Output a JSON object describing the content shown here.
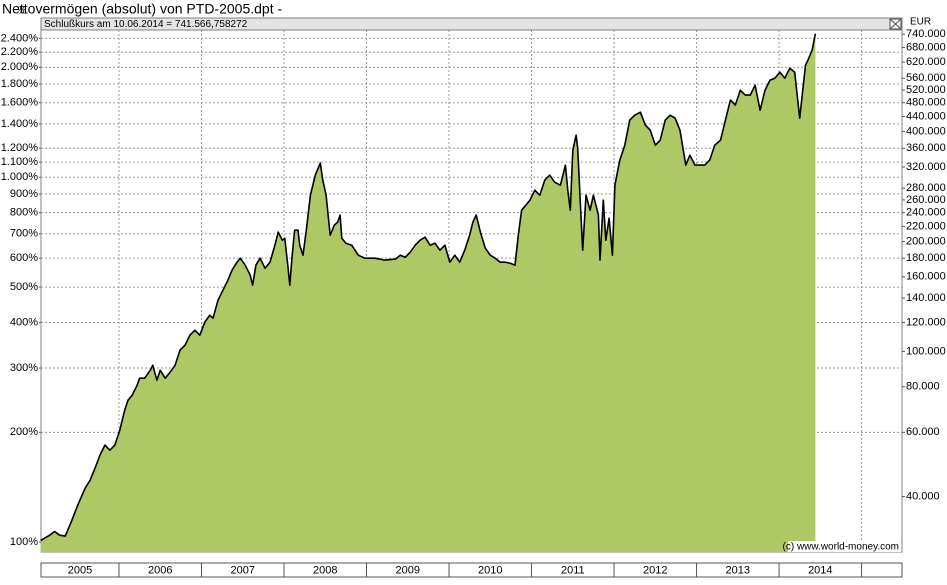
{
  "chart_data": {
    "type": "area",
    "title": "Nettovermögen (absolut) von PTD-2005.dpt -",
    "subtitle": "Schlußkurs am 10.06.2014 = 741.566,758272",
    "y_axis_label": "%",
    "y2_axis_label": "EUR",
    "annotation": "(c) www.world-money.com",
    "log_scale": true,
    "grid": true,
    "fill_color": "#aec866",
    "line_color": "#000000",
    "xlim": [
      2005.055,
      2015.49
    ],
    "xticks": [
      2005,
      2006,
      2007,
      2008,
      2009,
      2010,
      2011,
      2012,
      2013,
      2014
    ],
    "ylim": [
      94,
      2730
    ],
    "yticks": [
      {
        "value": 100,
        "label": "100%"
      },
      {
        "value": 200,
        "label": "200%"
      },
      {
        "value": 300,
        "label": "300%"
      },
      {
        "value": 400,
        "label": "400%"
      },
      {
        "value": 500,
        "label": "500%"
      },
      {
        "value": 600,
        "label": "600%"
      },
      {
        "value": 700,
        "label": "700%"
      },
      {
        "value": 800,
        "label": "800%"
      },
      {
        "value": 900,
        "label": "900%"
      },
      {
        "value": 1000,
        "label": "1.000%"
      },
      {
        "value": 1100,
        "label": "1.100%"
      },
      {
        "value": 1200,
        "label": "1.200%"
      },
      {
        "value": 1400,
        "label": "1.400%"
      },
      {
        "value": 1600,
        "label": "1.600%"
      },
      {
        "value": 1800,
        "label": "1.800%"
      },
      {
        "value": 2000,
        "label": "2.000%"
      },
      {
        "value": 2200,
        "label": "2.200%"
      },
      {
        "value": 2400,
        "label": "2.400%"
      }
    ],
    "y2lim": [
      28200,
      819000
    ],
    "y2ticks": [
      {
        "value": 40000,
        "label": "40.000"
      },
      {
        "value": 60000,
        "label": "60.000"
      },
      {
        "value": 80000,
        "label": "80.000"
      },
      {
        "value": 100000,
        "label": "100.000"
      },
      {
        "value": 120000,
        "label": "120.000"
      },
      {
        "value": 140000,
        "label": "140.000"
      },
      {
        "value": 160000,
        "label": "160.000"
      },
      {
        "value": 180000,
        "label": "180.000"
      },
      {
        "value": 200000,
        "label": "200.000"
      },
      {
        "value": 220000,
        "label": "220.000"
      },
      {
        "value": 240000,
        "label": "240.000"
      },
      {
        "value": 260000,
        "label": "260.000"
      },
      {
        "value": 280000,
        "label": "280.000"
      },
      {
        "value": 320000,
        "label": "320.000"
      },
      {
        "value": 360000,
        "label": "360.000"
      },
      {
        "value": 400000,
        "label": "400.000"
      },
      {
        "value": 440000,
        "label": "440.000"
      },
      {
        "value": 480000,
        "label": "480.000"
      },
      {
        "value": 520000,
        "label": "520.000"
      },
      {
        "value": 560000,
        "label": "560.000"
      },
      {
        "value": 620000,
        "label": "620.000"
      },
      {
        "value": 680000,
        "label": "680.000"
      },
      {
        "value": 740000,
        "label": "740.000"
      }
    ],
    "x": [
      2005.05,
      2005.1,
      2005.16,
      2005.22,
      2005.28,
      2005.35,
      2005.38,
      2005.43,
      2005.5,
      2005.59,
      2005.65,
      2005.71,
      2005.77,
      2005.83,
      2005.89,
      2005.95,
      2006.01,
      2006.07,
      2006.11,
      2006.16,
      2006.22,
      2006.25,
      2006.31,
      2006.38,
      2006.41,
      2006.46,
      2006.5,
      2006.56,
      2006.62,
      2006.68,
      2006.74,
      2006.8,
      2006.86,
      2006.92,
      2006.98,
      2007.04,
      2007.1,
      2007.14,
      2007.2,
      2007.26,
      2007.32,
      2007.37,
      2007.43,
      2007.47,
      2007.53,
      2007.59,
      2007.62,
      2007.66,
      2007.71,
      2007.77,
      2007.83,
      2007.89,
      2007.93,
      2007.98,
      2008.01,
      2008.05,
      2008.07,
      2008.1,
      2008.13,
      2008.17,
      2008.19,
      2008.23,
      2008.27,
      2008.32,
      2008.38,
      2008.44,
      2008.47,
      2008.51,
      2008.56,
      2008.61,
      2008.65,
      2008.68,
      2008.7,
      2008.75,
      2008.82,
      2008.9,
      2008.98,
      2009.1,
      2009.22,
      2009.35,
      2009.41,
      2009.47,
      2009.53,
      2009.59,
      2009.65,
      2009.71,
      2009.77,
      2009.83,
      2009.89,
      2009.95,
      2010.01,
      2010.07,
      2010.13,
      2010.19,
      2010.25,
      2010.29,
      2010.33,
      2010.38,
      2010.44,
      2010.5,
      2010.56,
      2010.62,
      2010.68,
      2010.74,
      2010.8,
      2010.84,
      2010.88,
      2010.93,
      2010.98,
      2011.04,
      2011.1,
      2011.16,
      2011.22,
      2011.28,
      2011.35,
      2011.41,
      2011.44,
      2011.47,
      2011.5,
      2011.54,
      2011.56,
      2011.59,
      2011.62,
      2011.66,
      2011.71,
      2011.75,
      2011.81,
      2011.83,
      2011.87,
      2011.9,
      2011.94,
      2011.98,
      2012.01,
      2012.07,
      2012.13,
      2012.19,
      2012.25,
      2012.32,
      2012.38,
      2012.44,
      2012.5,
      2012.56,
      2012.62,
      2012.68,
      2012.74,
      2012.8,
      2012.84,
      2012.87,
      2012.92,
      2012.98,
      2013.04,
      2013.1,
      2013.16,
      2013.22,
      2013.29,
      2013.35,
      2013.41,
      2013.47,
      2013.53,
      2013.59,
      2013.65,
      2013.71,
      2013.77,
      2013.83,
      2013.89,
      2013.95,
      2014.01,
      2014.07,
      2014.13,
      2014.19,
      2014.25,
      2014.32,
      2014.35,
      2014.4,
      2014.44
    ],
    "values": [
      101,
      102.6,
      104.5,
      107,
      104.5,
      103.9,
      108,
      114.9,
      126.3,
      140.6,
      147.9,
      159.5,
      173.2,
      184.5,
      178.7,
      184.5,
      202.7,
      229.9,
      244.9,
      252.7,
      269.3,
      281.4,
      281.4,
      296,
      305.5,
      277.9,
      296,
      281.4,
      292.3,
      305.5,
      335.7,
      346.5,
      369.1,
      380.9,
      369.1,
      400.5,
      418.8,
      410.9,
      460.3,
      490.1,
      522.2,
      556.3,
      584.8,
      600,
      574.1,
      538.9,
      506,
      574.1,
      600,
      563.2,
      584.8,
      651.2,
      707.1,
      672.1,
      680.7,
      563.2,
      506,
      611.3,
      715.9,
      715.9,
      651.2,
      611.3,
      715.9,
      892.5,
      1013,
      1093,
      981.3,
      892.5,
      693.6,
      738.9,
      752.9,
      787.1,
      680.7,
      659.5,
      651.2,
      611.3,
      600,
      600,
      592.6,
      596.4,
      611.3,
      603.7,
      623,
      651.2,
      672.1,
      685,
      651.2,
      659.5,
      631,
      651.2,
      584.8,
      611.3,
      584.8,
      631,
      693.6,
      752.9,
      787.1,
      707.1,
      639,
      611.3,
      600,
      584.8,
      584.8,
      581.7,
      574.1,
      693.6,
      812.1,
      838.1,
      865,
      921.3,
      892.5,
      981.3,
      1013,
      969,
      951,
      1079,
      921.3,
      812.1,
      1186,
      1303,
      1201,
      865,
      631,
      892.5,
      812.1,
      892.5,
      787.1,
      592.6,
      865,
      672.1,
      772.1,
      611.3,
      951,
      1114,
      1224,
      1433,
      1479,
      1507,
      1388,
      1345,
      1224,
      1263,
      1433,
      1479,
      1451,
      1345,
      1186,
      1079,
      1149,
      1079,
      1079,
      1079,
      1114,
      1224,
      1263,
      1433,
      1626,
      1576,
      1731,
      1678,
      1678,
      1787,
      1526,
      1731,
      1845,
      1868,
      1940,
      1868,
      1989,
      1940,
      1451,
      2027,
      2092,
      2228,
      2472
    ]
  }
}
